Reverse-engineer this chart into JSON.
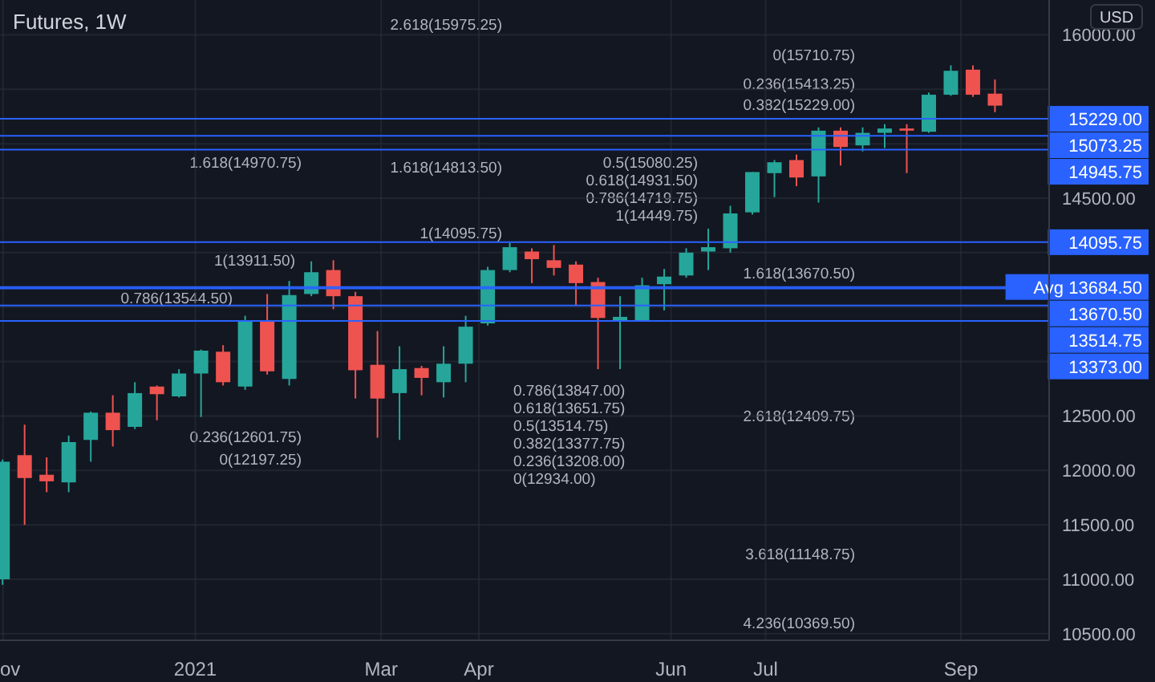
{
  "chart_data": {
    "type": "candlestick",
    "title": "Futures, 1W",
    "x": [
      "2020-11-01",
      "2020-11-08",
      "2020-11-15",
      "2020-11-22",
      "2020-11-29",
      "2020-12-06",
      "2020-12-13",
      "2020-12-20",
      "2020-12-27",
      "2021-01-03",
      "2021-01-10",
      "2021-01-17",
      "2021-01-24",
      "2021-01-31",
      "2021-02-07",
      "2021-02-14",
      "2021-02-21",
      "2021-02-28",
      "2021-03-07",
      "2021-03-14",
      "2021-03-21",
      "2021-03-28",
      "2021-04-04",
      "2021-04-11",
      "2021-04-18",
      "2021-04-25",
      "2021-05-02",
      "2021-05-09",
      "2021-05-16",
      "2021-05-23",
      "2021-05-30",
      "2021-06-06",
      "2021-06-13",
      "2021-06-20",
      "2021-06-27",
      "2021-07-04",
      "2021-07-11",
      "2021-07-18",
      "2021-07-25",
      "2021-08-01",
      "2021-08-08",
      "2021-08-15",
      "2021-08-22",
      "2021-08-29",
      "2021-09-05",
      "2021-09-12"
    ],
    "ohlc": [
      [
        11000,
        12100,
        10950,
        12080
      ],
      [
        12140,
        12420,
        11500,
        11930
      ],
      [
        11960,
        12120,
        11800,
        11900
      ],
      [
        11890,
        12320,
        11800,
        12260
      ],
      [
        12280,
        12540,
        12080,
        12530
      ],
      [
        12530,
        12690,
        12220,
        12370
      ],
      [
        12400,
        12810,
        12380,
        12710
      ],
      [
        12770,
        12780,
        12460,
        12700
      ],
      [
        12680,
        12930,
        12670,
        12890
      ],
      [
        12890,
        13110,
        12490,
        13100
      ],
      [
        13090,
        13150,
        12780,
        12810
      ],
      [
        12770,
        13420,
        12740,
        13380
      ],
      [
        13380,
        13620,
        12880,
        12910
      ],
      [
        12840,
        13740,
        12780,
        13610
      ],
      [
        13620,
        13920,
        13600,
        13820
      ],
      [
        13840,
        13930,
        13480,
        13600
      ],
      [
        13600,
        13640,
        12660,
        12920
      ],
      [
        12970,
        13280,
        12300,
        12660
      ],
      [
        12710,
        13140,
        12280,
        12930
      ],
      [
        12940,
        12960,
        12690,
        12850
      ],
      [
        12810,
        13140,
        12670,
        12980
      ],
      [
        12980,
        13420,
        12810,
        13320
      ],
      [
        13350,
        13870,
        13330,
        13840
      ],
      [
        13840,
        14090,
        13820,
        14050
      ],
      [
        14010,
        14040,
        13720,
        13940
      ],
      [
        13930,
        14070,
        13790,
        13860
      ],
      [
        13890,
        13920,
        13520,
        13720
      ],
      [
        13730,
        13770,
        12930,
        13400
      ],
      [
        13380,
        13600,
        12930,
        13410
      ],
      [
        13380,
        13770,
        13370,
        13700
      ],
      [
        13710,
        13850,
        13470,
        13780
      ],
      [
        13790,
        14040,
        13770,
        14000
      ],
      [
        14010,
        14220,
        13840,
        14050
      ],
      [
        14040,
        14430,
        14000,
        14360
      ],
      [
        14370,
        14740,
        14350,
        14740
      ],
      [
        14730,
        14850,
        14510,
        14830
      ],
      [
        14850,
        14900,
        14610,
        14690
      ],
      [
        14700,
        15150,
        14460,
        15120
      ],
      [
        15120,
        15150,
        14800,
        14970
      ],
      [
        14985,
        15150,
        14930,
        15100
      ],
      [
        15100,
        15180,
        14960,
        15140
      ],
      [
        15140,
        15180,
        14730,
        15120
      ],
      [
        15110,
        15470,
        15100,
        15450
      ],
      [
        15450,
        15720,
        15440,
        15670
      ],
      [
        15680,
        15720,
        15430,
        15450
      ],
      [
        15460,
        15590,
        15290,
        15350
      ]
    ],
    "colors": [
      "#26a69a",
      "#ef5350",
      "#ef5350",
      "#26a69a",
      "#26a69a",
      "#ef5350",
      "#26a69a",
      "#ef5350",
      "#26a69a",
      "#26a69a",
      "#ef5350",
      "#26a69a",
      "#ef5350",
      "#26a69a",
      "#26a69a",
      "#ef5350",
      "#ef5350",
      "#ef5350",
      "#26a69a",
      "#ef5350",
      "#26a69a",
      "#26a69a",
      "#26a69a",
      "#26a69a",
      "#ef5350",
      "#ef5350",
      "#ef5350",
      "#ef5350",
      "#26a69a",
      "#26a69a",
      "#26a69a",
      "#26a69a",
      "#26a69a",
      "#26a69a",
      "#26a69a",
      "#26a69a",
      "#ef5350",
      "#26a69a",
      "#ef5350",
      "#26a69a",
      "#26a69a",
      "#ef5350",
      "#26a69a",
      "#26a69a",
      "#ef5350",
      "#ef5350"
    ],
    "xlim": [
      "2020-10-31",
      "2021-09-29"
    ],
    "xticks": [
      {
        "value": "2020-11-01",
        "label": "ov"
      },
      {
        "value": "2021-01-01",
        "label": "2021"
      },
      {
        "value": "2021-03-01",
        "label": "Mar"
      },
      {
        "value": "2021-04-01",
        "label": "Apr"
      },
      {
        "value": "2021-06-01",
        "label": "Jun"
      },
      {
        "value": "2021-07-01",
        "label": "Jul"
      },
      {
        "value": "2021-09-01",
        "label": "Sep"
      }
    ],
    "ylim": [
      10440,
      16320
    ],
    "yticks": [
      {
        "value": 10500,
        "label": "10500.00"
      },
      {
        "value": 11000,
        "label": "11000.00"
      },
      {
        "value": 11500,
        "label": "11500.00"
      },
      {
        "value": 12000,
        "label": "12000.00"
      },
      {
        "value": 12500,
        "label": "12500.00"
      },
      {
        "value": 13000,
        "label": null
      },
      {
        "value": 13500,
        "label": null
      },
      {
        "value": 14000,
        "label": null
      },
      {
        "value": 14500,
        "label": "14500.00"
      },
      {
        "value": 15000,
        "label": null
      },
      {
        "value": 15500,
        "label": null
      },
      {
        "value": 16000,
        "label": "16000.00"
      }
    ],
    "grid": true,
    "ref_lines": [
      {
        "axis": "y",
        "value": 15229.0,
        "label": "15229.00",
        "color": "#2962ff"
      },
      {
        "axis": "y",
        "value": 15073.25,
        "label": "15073.25",
        "color": "#2962ff"
      },
      {
        "axis": "y",
        "value": 14945.75,
        "label": "14945.75",
        "color": "#2962ff"
      },
      {
        "axis": "y",
        "value": 14095.75,
        "label": "14095.75",
        "color": "#2962ff"
      },
      {
        "axis": "y",
        "value": 13684.5,
        "label": "Avg 13684.50",
        "color": "#2962ff"
      },
      {
        "axis": "y",
        "value": 13670.5,
        "label": "13670.50",
        "color": "#2962ff"
      },
      {
        "axis": "y",
        "value": 13514.75,
        "label": "13514.75",
        "color": "#2962ff"
      },
      {
        "axis": "y",
        "value": 13373.0,
        "label": "13373.00",
        "color": "#2962ff"
      }
    ],
    "annotations": [
      "USD",
      "1.618(14970.75)",
      "1(13911.50)",
      "0.786(13544.50)",
      "0.236(12601.75)",
      "0(12197.25)",
      "2.618(15975.25)",
      "1.618(14813.50)",
      "1(14095.75)",
      "0.786(13847.00)",
      "0.618(13651.75)",
      "0.5(13514.75)",
      "0.382(13377.75)",
      "0.236(13208.00)",
      "0(12934.00)",
      "0(15710.75)",
      "0.236(15413.25)",
      "0.382(15229.00)",
      "0.5(15080.25)",
      "0.618(14931.50)",
      "0.786(14719.75)",
      "1(14449.75)",
      "1.618(13670.50)",
      "2.618(12409.75)",
      "3.618(11148.75)",
      "4.236(10369.50)"
    ]
  }
}
